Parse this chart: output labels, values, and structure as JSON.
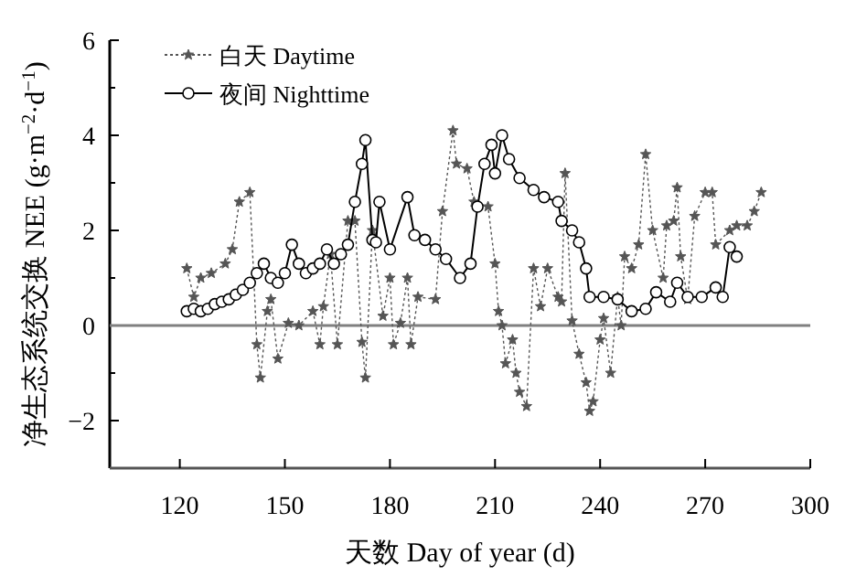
{
  "chart_data": {
    "type": "line",
    "xlabel": "天数 Day of year (d)",
    "ylabel": "净生态系统交换 NEE (g·m$^{−2}$·d$^{−1}$)",
    "xlim": [
      100,
      300
    ],
    "ylim": [
      -3,
      6
    ],
    "xticks": [
      120,
      150,
      180,
      210,
      240,
      270,
      300
    ],
    "yticks": [
      -2,
      {
        "value": -1,
        "label": null
      },
      0,
      {
        "value": 1,
        "label": null
      },
      2,
      {
        "value": 3,
        "label": null
      },
      4,
      {
        "value": 5,
        "label": null
      },
      6
    ],
    "legend": "top left",
    "grid": false,
    "ref_lines": [
      {
        "axis": "y",
        "value": 0,
        "label": null,
        "color": "#808080"
      }
    ],
    "series": [
      {
        "name": "白天 Daytime",
        "color": "#555555",
        "marker": "star",
        "line_style": "dotted",
        "x": [
          122,
          124,
          126,
          129,
          133,
          135,
          137,
          140,
          142,
          143,
          145,
          146,
          148,
          151,
          154,
          158,
          160,
          161,
          163,
          165,
          168,
          170,
          172,
          173,
          175,
          178,
          180,
          181,
          183,
          185,
          186,
          188,
          193,
          195,
          198,
          199,
          202,
          204,
          208,
          210,
          211,
          212,
          213,
          215,
          216,
          217,
          219,
          221,
          223,
          225,
          228,
          229,
          230,
          232,
          234,
          236,
          237,
          238,
          240,
          241,
          243,
          245,
          246,
          247,
          249,
          251,
          253,
          255,
          258,
          259,
          261,
          262,
          263,
          265,
          267,
          270,
          272,
          273,
          277,
          279,
          282,
          284,
          286
        ],
        "values": [
          1.2,
          0.6,
          1.0,
          1.1,
          1.3,
          1.6,
          2.6,
          2.8,
          -0.4,
          -1.1,
          0.3,
          0.55,
          -0.7,
          0.05,
          0,
          0.3,
          -0.4,
          0.4,
          1.5,
          -0.4,
          2.2,
          2.2,
          -0.35,
          -1.1,
          2.0,
          0.2,
          1.0,
          -0.4,
          0.05,
          1.0,
          -0.4,
          0.6,
          0.55,
          2.4,
          4.1,
          3.4,
          3.3,
          2.6,
          2.5,
          1.3,
          0.3,
          0,
          -0.8,
          -0.3,
          -1.0,
          -1.4,
          -1.7,
          1.2,
          0.4,
          1.2,
          0.6,
          0.5,
          3.2,
          0.1,
          -0.6,
          -1.2,
          -1.8,
          -1.6,
          -0.3,
          0.15,
          -1.0,
          0.6,
          0,
          1.45,
          1.2,
          1.7,
          3.6,
          2.0,
          1.0,
          2.1,
          2.2,
          2.9,
          1.45,
          0.55,
          2.3,
          2.8,
          2.8,
          1.7,
          2.0,
          2.1,
          2.1,
          2.4,
          2.8
        ]
      },
      {
        "name": "夜间 Nighttime",
        "color": "#000000",
        "marker": "circle",
        "line_style": "solid",
        "x": [
          122,
          124,
          126,
          128,
          130,
          132,
          134,
          136,
          138,
          140,
          142,
          144,
          146,
          148,
          150,
          152,
          154,
          156,
          158,
          160,
          162,
          164,
          166,
          168,
          170,
          172,
          173,
          175,
          176,
          177,
          180,
          185,
          187,
          190,
          193,
          196,
          200,
          203,
          205,
          207,
          209,
          210,
          212,
          214,
          217,
          221,
          224,
          228,
          229,
          232,
          234,
          236,
          237,
          241,
          245,
          249,
          253,
          256,
          260,
          262,
          265,
          269,
          273,
          275,
          277,
          279
        ],
        "values": [
          0.3,
          0.35,
          0.3,
          0.35,
          0.45,
          0.5,
          0.55,
          0.65,
          0.75,
          0.9,
          1.1,
          1.3,
          1.0,
          0.9,
          1.1,
          1.7,
          1.3,
          1.1,
          1.2,
          1.3,
          1.6,
          1.3,
          1.5,
          1.7,
          2.6,
          3.4,
          3.9,
          1.8,
          1.75,
          2.6,
          1.6,
          2.7,
          1.9,
          1.8,
          1.6,
          1.4,
          1.0,
          1.3,
          2.5,
          3.4,
          3.8,
          3.2,
          4.0,
          3.5,
          3.1,
          2.85,
          2.7,
          2.6,
          2.2,
          2.0,
          1.75,
          1.2,
          0.6,
          0.6,
          0.55,
          0.3,
          0.35,
          0.7,
          0.5,
          0.9,
          0.6,
          0.6,
          0.8,
          0.6,
          1.65,
          1.45
        ]
      }
    ]
  }
}
